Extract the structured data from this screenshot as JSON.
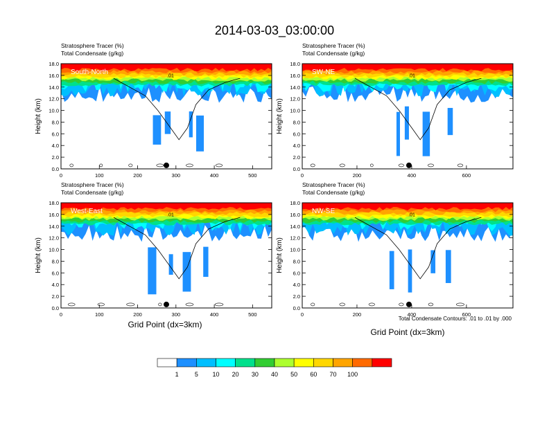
{
  "title": "2014-03-03_03:00:00",
  "panel_header_line1": "Stratosphere Tracer   (%)",
  "panel_header_line2": "Total Condensate   (g/kg)",
  "ylabel": "Height (km)",
  "xlabel": "Grid Point (dx=3km)",
  "contour_note": "Total Condensate Contours: .01 to .01 by .000",
  "contour_label": ".01",
  "colorbar": {
    "levels": [
      "1",
      "5",
      "10",
      "20",
      "30",
      "40",
      "50",
      "60",
      "70",
      "100"
    ],
    "colors": [
      "#ffffff",
      "#1e90ff",
      "#00bfff",
      "#00ffff",
      "#00e08c",
      "#32cd32",
      "#adff2f",
      "#ffff00",
      "#ffd700",
      "#ffa500",
      "#ff6a00",
      "#ff0000"
    ]
  },
  "chart_data": [
    {
      "type": "heatmap",
      "name": "South-North",
      "xlim": [
        0,
        550
      ],
      "ylim": [
        0,
        18
      ],
      "xticks": [
        "0",
        "100",
        "200",
        "300",
        "400",
        "500"
      ],
      "yticks": [
        "0.0",
        "2.0",
        "4.0",
        "6.0",
        "8.0",
        "10.0",
        "12.0",
        "14.0",
        "16.0",
        "18.0"
      ],
      "marker_x": 275
    },
    {
      "type": "heatmap",
      "name": "SW-NE",
      "xlim": [
        0,
        770
      ],
      "ylim": [
        0,
        18
      ],
      "xticks": [
        "0",
        "200",
        "400",
        "600"
      ],
      "yticks": [
        "0.0",
        "2.0",
        "4.0",
        "6.0",
        "8.0",
        "10.0",
        "12.0",
        "14.0",
        "16.0",
        "18.0"
      ],
      "marker_x": 390
    },
    {
      "type": "heatmap",
      "name": "West-East",
      "xlim": [
        0,
        550
      ],
      "ylim": [
        0,
        18
      ],
      "xticks": [
        "0",
        "100",
        "200",
        "300",
        "400",
        "500"
      ],
      "yticks": [
        "0.0",
        "2.0",
        "4.0",
        "6.0",
        "8.0",
        "10.0",
        "12.0",
        "14.0",
        "16.0",
        "18.0"
      ],
      "marker_x": 275
    },
    {
      "type": "heatmap",
      "name": "NW-SE",
      "xlim": [
        0,
        770
      ],
      "ylim": [
        0,
        18
      ],
      "xticks": [
        "0",
        "200",
        "400",
        "600"
      ],
      "yticks": [
        "0.0",
        "2.0",
        "4.0",
        "6.0",
        "8.0",
        "10.0",
        "12.0",
        "14.0",
        "16.0",
        "18.0"
      ],
      "marker_x": 390
    }
  ]
}
